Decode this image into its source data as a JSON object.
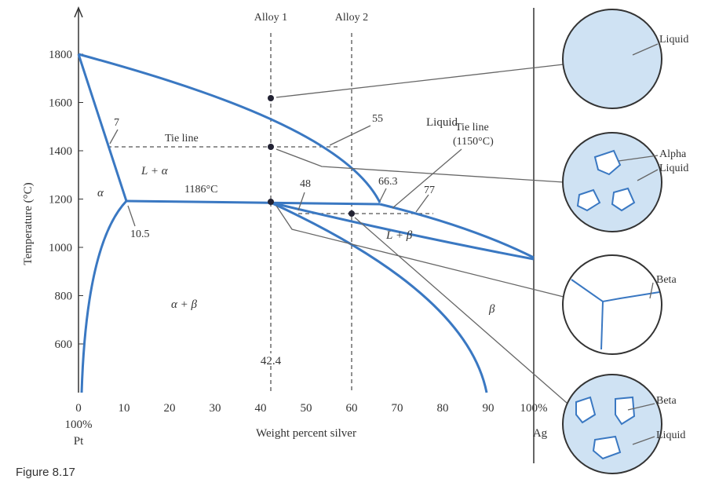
{
  "y_axis": {
    "label": "Temperature (°C)",
    "ticks": [
      "600",
      "800",
      "1000",
      "1200",
      "1400",
      "1600",
      "1800"
    ]
  },
  "x_axis": {
    "label": "Weight percent silver",
    "ticks": [
      "0",
      "10",
      "20",
      "30",
      "40",
      "50",
      "60",
      "70",
      "80",
      "90",
      "100%"
    ],
    "left_end": "100%",
    "left_element": "Pt",
    "right_element": "Ag"
  },
  "annotations": {
    "alloy_1": "Alloy 1",
    "alloy_2": "Alloy 2",
    "liquid_region": "Liquid",
    "point_55": "55",
    "tie_line_1": "Tie line",
    "point_7": "7",
    "l_alpha": "L + α",
    "alpha": "α",
    "peritectic_temp": "1186°C",
    "point_48": "48",
    "point_66_3": "66.3",
    "tie_line_2": "Tie line",
    "tie_line_2_temp": "(1150°C)",
    "point_77": "77",
    "l_beta": "L + β",
    "alpha_beta": "α + β",
    "beta": "β",
    "point_10_5": "10.5",
    "point_42_4": "42.4"
  },
  "microstructures": [
    {
      "labels": [
        "Liquid"
      ]
    },
    {
      "labels": [
        "Alpha",
        "Liquid"
      ]
    },
    {
      "labels": [
        "Beta"
      ]
    },
    {
      "labels": [
        "Beta",
        "Liquid"
      ]
    }
  ],
  "caption": "Figure 8.17"
}
